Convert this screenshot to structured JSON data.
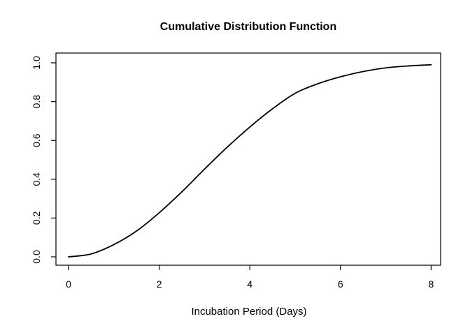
{
  "chart_data": {
    "type": "line",
    "title": "Cumulative Distribution Function",
    "xlabel": "Incubation Period (Days)",
    "ylabel": "",
    "xlim": [
      0,
      8
    ],
    "ylim": [
      0.0,
      1.0
    ],
    "xticks": {
      "values": [
        0,
        2,
        4,
        6,
        8
      ],
      "labels": [
        "0",
        "2",
        "4",
        "6",
        "8"
      ]
    },
    "yticks": {
      "values": [
        0.0,
        0.2,
        0.4,
        0.6,
        0.8,
        1.0
      ],
      "labels": [
        "0.0",
        "0.2",
        "0.4",
        "0.6",
        "0.8",
        "1.0"
      ]
    },
    "grid": false,
    "styles": {
      "line_color": "#000000",
      "line_width": 1.8,
      "axis_color": "#000000",
      "background": "#ffffff"
    },
    "series": [
      {
        "name": "cdf",
        "x": [
          0,
          0.5,
          1,
          1.5,
          2,
          2.5,
          3,
          3.5,
          4,
          4.5,
          5,
          5.5,
          6,
          6.5,
          7,
          7.5,
          8
        ],
        "y": [
          0.0,
          0.015,
          0.063,
          0.133,
          0.227,
          0.335,
          0.452,
          0.565,
          0.669,
          0.763,
          0.843,
          0.892,
          0.928,
          0.955,
          0.974,
          0.984,
          0.99
        ]
      }
    ]
  }
}
